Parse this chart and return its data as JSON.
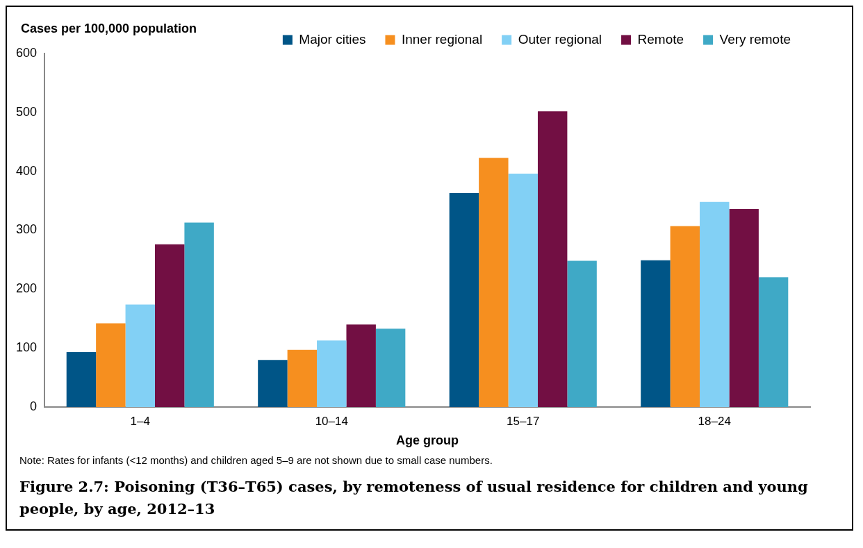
{
  "chart_data": {
    "type": "bar",
    "title": "Figure 2.7: Poisoning (T36–T65) cases, by remoteness of usual residence for children and young people, by age, 2012–13",
    "ylabel": "Cases per 100,000 population",
    "xlabel": "Age group",
    "categories": [
      "1–4",
      "10–14",
      "15–17",
      "18–24"
    ],
    "series": [
      {
        "name": "Major cities",
        "color": "#005587",
        "values": [
          93,
          80,
          363,
          249
        ]
      },
      {
        "name": "Inner regional",
        "color": "#f68f1f",
        "values": [
          142,
          97,
          423,
          307
        ]
      },
      {
        "name": "Outer regional",
        "color": "#82d0f5",
        "values": [
          174,
          113,
          396,
          348
        ]
      },
      {
        "name": "Remote",
        "color": "#720f43",
        "values": [
          276,
          140,
          502,
          336
        ]
      },
      {
        "name": "Very remote",
        "color": "#3fa9c6",
        "values": [
          313,
          133,
          248,
          220
        ]
      }
    ],
    "ylim": [
      0,
      600
    ],
    "yticks": [
      0,
      100,
      200,
      300,
      400,
      500,
      600
    ],
    "grid": false,
    "legend": "top right",
    "annotations": [
      "Note: Rates for infants (<12 months) and children aged 5–9 are not shown due to small case numbers."
    ]
  }
}
